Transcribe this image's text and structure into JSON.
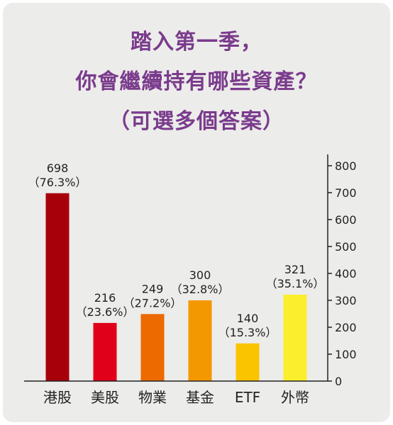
{
  "title": {
    "line1": "踏入第一季，",
    "line2": "你會繼續持有哪些資產？",
    "line3": "（可選多個答案）"
  },
  "colors": {
    "background": "#ececea",
    "title": "#7a3b8c",
    "bars": [
      "#a8000b",
      "#e1001a",
      "#ec6a00",
      "#f39800",
      "#fbc400",
      "#fbee2d"
    ]
  },
  "chart_data": {
    "type": "bar",
    "title": "踏入第一季，你會繼續持有哪些資產？（可選多個答案）",
    "categories": [
      "港股",
      "美股",
      "物業",
      "基金",
      "ETF",
      "外幣"
    ],
    "values": [
      698,
      216,
      249,
      300,
      140,
      321
    ],
    "percent_labels": [
      "（76.3%）",
      "（23.6%）",
      "（27.2%）",
      "（32.8%）",
      "（15.3%）",
      "（35.1%）"
    ],
    "yticks": [
      0,
      100,
      200,
      300,
      400,
      500,
      600,
      700,
      800
    ],
    "ylim": [
      0,
      800
    ],
    "y_axis_side": "right",
    "grid": false,
    "legend": "none",
    "xlabel": "",
    "ylabel": ""
  }
}
